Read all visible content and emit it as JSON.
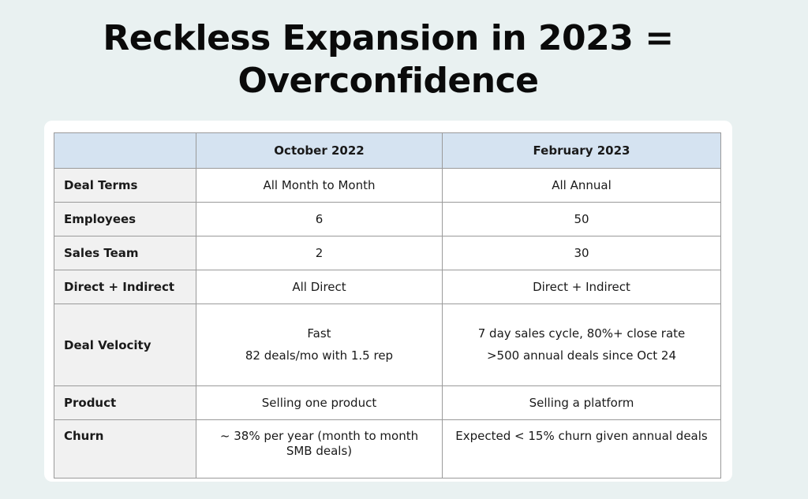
{
  "title": {
    "line1": "Reckless Expansion in 2023 =",
    "line2": "Overconfidence"
  },
  "table": {
    "header_blank": "",
    "col1": "October 2022",
    "col2": "February 2023",
    "rows": [
      {
        "label": "Deal Terms",
        "c1": [
          "All Month to Month"
        ],
        "c2": [
          "All Annual"
        ]
      },
      {
        "label": "Employees",
        "c1": [
          "6"
        ],
        "c2": [
          "50"
        ]
      },
      {
        "label": "Sales Team",
        "c1": [
          "2"
        ],
        "c2": [
          "30"
        ]
      },
      {
        "label": "Direct + Indirect",
        "c1": [
          "All Direct"
        ],
        "c2": [
          "Direct + Indirect"
        ]
      },
      {
        "label": "Deal Velocity",
        "c1": [
          "Fast",
          "82 deals/mo with 1.5 rep"
        ],
        "c2": [
          "7 day sales cycle, 80%+ close rate",
          ">500 annual deals since Oct 24"
        ]
      },
      {
        "label": "Product",
        "c1": [
          "Selling one product"
        ],
        "c2": [
          "Selling a platform"
        ]
      },
      {
        "label": "Churn",
        "c1": [
          "~ 38% per year (month to month SMB deals)"
        ],
        "c2": [
          "Expected < 15% churn given annual deals"
        ]
      }
    ]
  }
}
